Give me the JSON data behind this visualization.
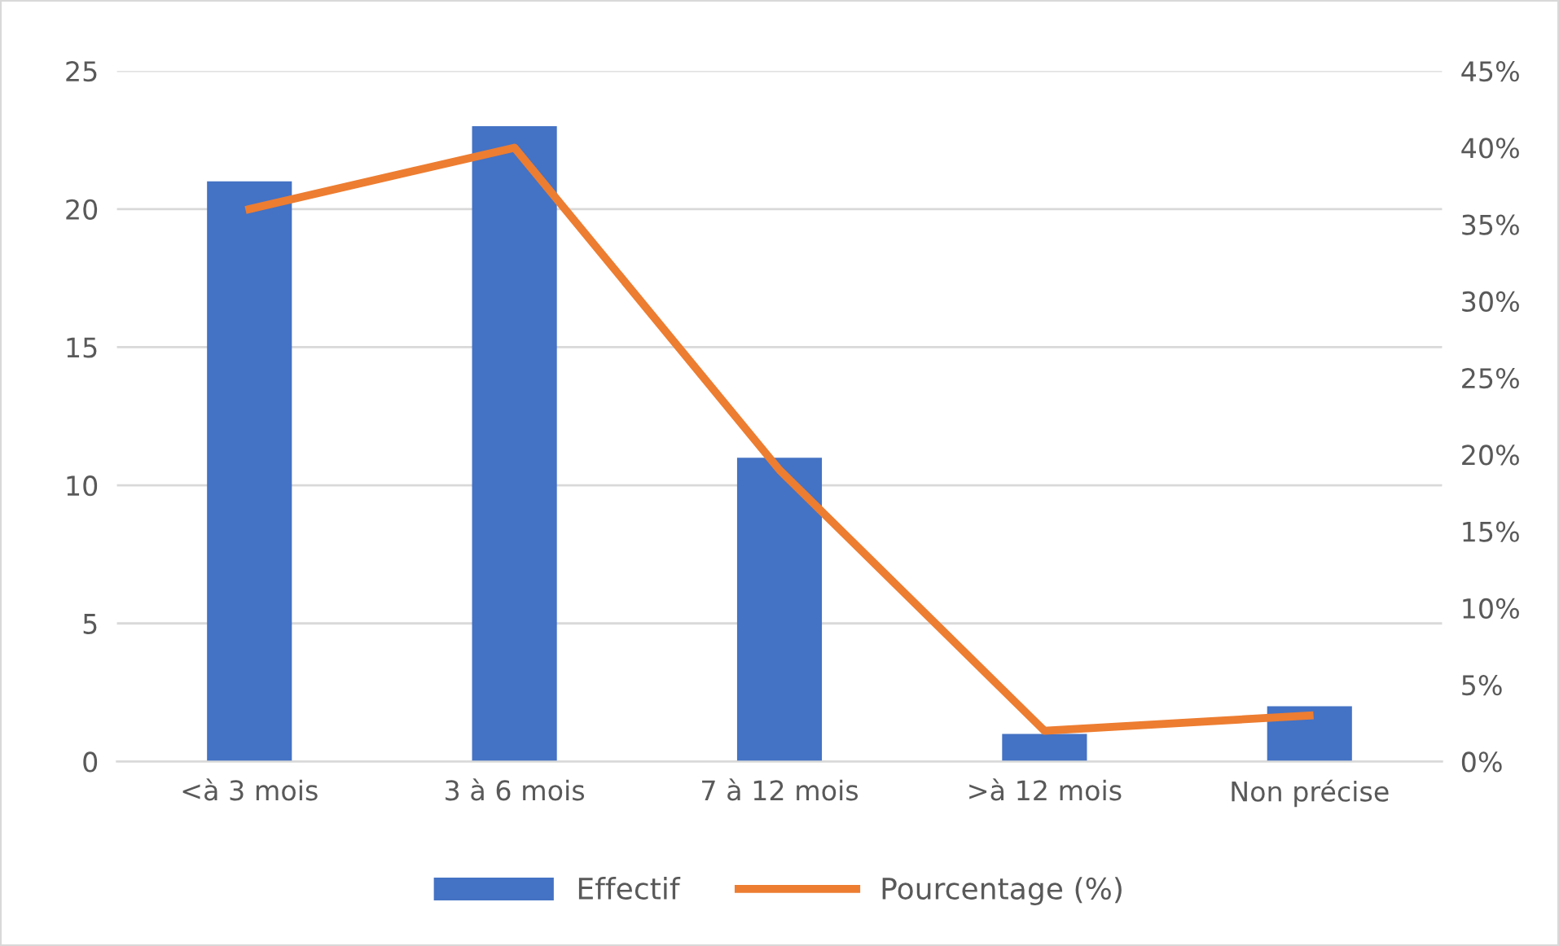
{
  "chart_data": {
    "type": "bar",
    "categories": [
      "<à 3 mois",
      "3 à 6 mois",
      "7 à 12 mois",
      ">à 12 mois",
      "Non précise"
    ],
    "series": [
      {
        "name": "Effectif",
        "color": "#4472c4",
        "values": [
          21,
          23,
          11,
          1,
          2
        ]
      },
      {
        "name": "Pourcentage (%)",
        "type": "line",
        "axis": "y2",
        "color": "#ed7d31",
        "values": [
          36,
          40,
          19,
          2,
          3
        ]
      }
    ],
    "ylim": [
      0,
      25
    ],
    "yticks": [
      0,
      5,
      10,
      15,
      20,
      25
    ],
    "y2lim": [
      0,
      45
    ],
    "y2ticks": [
      {
        "value": 0,
        "label": "0%"
      },
      {
        "value": 5,
        "label": "5%"
      },
      {
        "value": 10,
        "label": "10%"
      },
      {
        "value": 15,
        "label": "15%"
      },
      {
        "value": 20,
        "label": "20%"
      },
      {
        "value": 25,
        "label": "25%"
      },
      {
        "value": 30,
        "label": "30%"
      },
      {
        "value": 35,
        "label": "35%"
      },
      {
        "value": 40,
        "label": "40%"
      },
      {
        "value": 45,
        "label": "45%"
      }
    ],
    "grid": "y",
    "legend": "bottom"
  }
}
